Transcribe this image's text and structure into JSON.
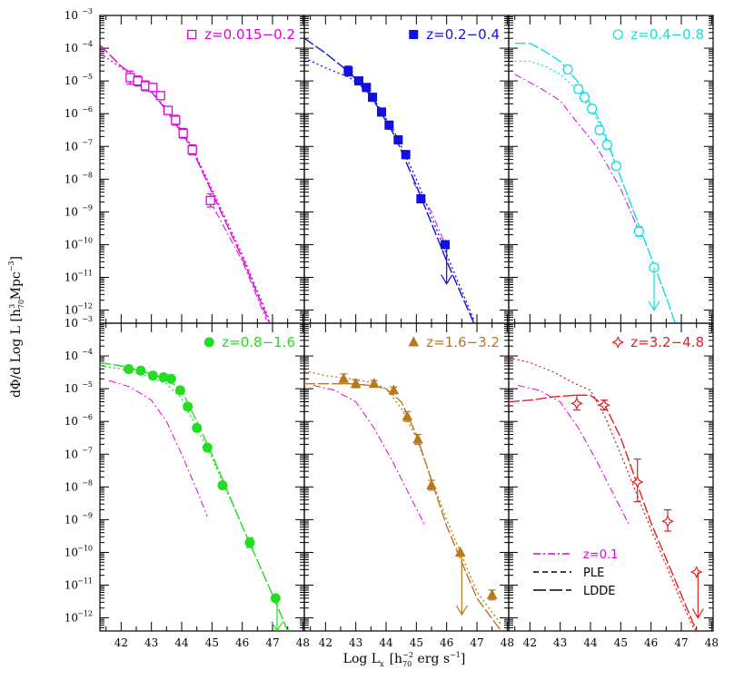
{
  "chart_data": {
    "type": "scatter",
    "xlabel": "Log L",
    "xlabel_sub": "x",
    "xlabel_bracket": "[h",
    "xlabel_unit_sub": "70",
    "xlabel_unit_sup": "−2",
    "xlabel_unit_rest": " erg s",
    "xlabel_unit_sup2": "−1",
    "xlabel_close": "]",
    "ylabel": "dΦ/d Log L [h",
    "ylabel_sub": "70",
    "ylabel_sup": "3",
    "ylabel_rest": " Mpc",
    "ylabel_sup2": "−3",
    "ylabel_close": "]",
    "xlim": [
      41.3,
      48.05
    ],
    "ylim_log10": [
      -12.4,
      -3
    ],
    "x_ticks": [
      42,
      43,
      44,
      45,
      46,
      47,
      48
    ],
    "y_tick_exponents": [
      -12,
      -11,
      -10,
      -9,
      -8,
      -7,
      -6,
      -5,
      -4,
      -3
    ],
    "y_tick_base": "10",
    "legend": {
      "position": "bottom-right of last panel",
      "entries": [
        {
          "label": "z=0.1",
          "style": "dash-dot",
          "color": "#e000e0"
        },
        {
          "label": "PLE",
          "style": "short-dash",
          "color": "#000000"
        },
        {
          "label": "LDDE",
          "style": "long-dash",
          "color": "#000000"
        }
      ]
    },
    "panels": [
      {
        "label": "z=0.015−0.2",
        "color": "#e000e0",
        "marker": "open-square",
        "points": [
          [
            42.3,
            -4.9,
            0.2,
            0.2
          ],
          [
            42.55,
            -5.0,
            0.15,
            0.15
          ],
          [
            42.8,
            -5.15,
            0.15,
            0.15
          ],
          [
            43.05,
            -5.2,
            0.12,
            0.12
          ],
          [
            43.3,
            -5.45,
            0.12,
            0.12
          ],
          [
            43.55,
            -5.9,
            0.12,
            0.12
          ],
          [
            43.8,
            -6.2,
            0.15,
            0.15
          ],
          [
            44.05,
            -6.6,
            0.15,
            0.15
          ],
          [
            44.35,
            -7.1,
            0.15,
            0.15
          ],
          [
            44.95,
            -8.65,
            0.2,
            0.2
          ]
        ],
        "upper_limits": [],
        "ldde": [
          [
            41.3,
            -3.9
          ],
          [
            42.0,
            -4.55
          ],
          [
            42.8,
            -5.1
          ],
          [
            43.5,
            -5.9
          ],
          [
            44.3,
            -7.0
          ],
          [
            45.0,
            -8.4
          ],
          [
            46.0,
            -10.4
          ],
          [
            46.9,
            -12.4
          ]
        ],
        "ple": [
          [
            41.3,
            -4.15
          ],
          [
            42.0,
            -4.6
          ],
          [
            42.8,
            -5.15
          ],
          [
            43.5,
            -5.85
          ],
          [
            44.3,
            -6.95
          ],
          [
            45.0,
            -8.3
          ],
          [
            46.0,
            -10.3
          ],
          [
            46.9,
            -12.3
          ]
        ],
        "z01": [
          [
            44.9,
            -8.6
          ],
          [
            46.0,
            -10.5
          ],
          [
            46.8,
            -12.3
          ]
        ]
      },
      {
        "label": "z=0.2−0.4",
        "color": "#1010e0",
        "marker": "filled-square",
        "points": [
          [
            42.75,
            -4.7,
            0.15,
            0.15
          ],
          [
            43.1,
            -5.0,
            0.12,
            0.12
          ],
          [
            43.35,
            -5.2,
            0.12,
            0.12
          ],
          [
            43.55,
            -5.5,
            0.12,
            0.12
          ],
          [
            43.85,
            -5.95,
            0.12,
            0.12
          ],
          [
            44.1,
            -6.35,
            0.12,
            0.12
          ],
          [
            44.4,
            -6.8,
            0.12,
            0.12
          ],
          [
            44.65,
            -7.25,
            0.12,
            0.12
          ],
          [
            45.15,
            -8.6,
            0.12,
            0.12
          ],
          [
            45.95,
            -10.0,
            0,
            0
          ]
        ],
        "upper_limits": [
          [
            46.0,
            -10.0,
            -11.2
          ]
        ],
        "ldde": [
          [
            41.3,
            -3.7
          ],
          [
            42.0,
            -4.15
          ],
          [
            42.8,
            -4.75
          ],
          [
            43.5,
            -5.45
          ],
          [
            44.3,
            -6.7
          ],
          [
            45.0,
            -8.2
          ],
          [
            46.0,
            -10.5
          ],
          [
            46.9,
            -12.4
          ]
        ],
        "ple": [
          [
            41.3,
            -4.3
          ],
          [
            42.0,
            -4.6
          ],
          [
            42.8,
            -4.9
          ],
          [
            43.5,
            -5.4
          ],
          [
            44.3,
            -6.6
          ],
          [
            45.0,
            -8.0
          ],
          [
            46.0,
            -10.3
          ],
          [
            46.9,
            -12.3
          ]
        ],
        "z01": [
          [
            44.9,
            -8.1
          ],
          [
            45.5,
            -9.0
          ],
          [
            46.0,
            -10.1
          ]
        ]
      },
      {
        "label": "z=0.4−0.8",
        "color": "#10e0e0",
        "marker": "open-circle",
        "points": [
          [
            43.25,
            -4.65,
            0.12,
            0.12
          ],
          [
            43.6,
            -5.25,
            0.12,
            0.12
          ],
          [
            43.8,
            -5.5,
            0.12,
            0.12
          ],
          [
            44.05,
            -5.85,
            0.12,
            0.12
          ],
          [
            44.3,
            -6.5,
            0.12,
            0.12
          ],
          [
            44.55,
            -6.95,
            0.12,
            0.12
          ],
          [
            44.85,
            -7.6,
            0.12,
            0.12
          ],
          [
            45.6,
            -9.6,
            0.15,
            0.15
          ],
          [
            46.1,
            -10.7,
            0,
            0
          ]
        ],
        "upper_limits": [
          [
            46.1,
            -10.7,
            -12.0
          ]
        ],
        "ldde": [
          [
            41.5,
            -3.85
          ],
          [
            42.0,
            -3.85
          ],
          [
            42.5,
            -4.1
          ],
          [
            43.0,
            -4.4
          ],
          [
            43.6,
            -5.05
          ],
          [
            44.3,
            -6.2
          ],
          [
            45.0,
            -7.95
          ],
          [
            45.8,
            -9.9
          ],
          [
            46.5,
            -11.6
          ],
          [
            46.8,
            -12.4
          ]
        ],
        "ple": [
          [
            41.5,
            -4.4
          ],
          [
            42.0,
            -4.4
          ],
          [
            42.5,
            -4.55
          ],
          [
            43.0,
            -4.8
          ],
          [
            43.6,
            -5.3
          ],
          [
            44.3,
            -6.3
          ],
          [
            45.0,
            -7.95
          ],
          [
            45.8,
            -9.9
          ],
          [
            46.5,
            -11.6
          ],
          [
            46.8,
            -12.4
          ]
        ],
        "z01": [
          [
            41.5,
            -4.8
          ],
          [
            42.3,
            -5.2
          ],
          [
            43.0,
            -5.6
          ],
          [
            43.5,
            -6.2
          ],
          [
            44.2,
            -7.0
          ],
          [
            45.0,
            -8.3
          ],
          [
            45.7,
            -9.8
          ]
        ]
      },
      {
        "label": "z=0.8−1.6",
        "color": "#22dd22",
        "marker": "filled-circle",
        "points": [
          [
            42.25,
            -4.4,
            0.1,
            0.1
          ],
          [
            42.65,
            -4.45,
            0.1,
            0.1
          ],
          [
            43.05,
            -4.6,
            0.1,
            0.1
          ],
          [
            43.4,
            -4.65,
            0.1,
            0.1
          ],
          [
            43.65,
            -4.7,
            0.1,
            0.1
          ],
          [
            43.95,
            -5.05,
            0.1,
            0.1
          ],
          [
            44.2,
            -5.55,
            0.1,
            0.1
          ],
          [
            44.5,
            -6.2,
            0.1,
            0.1
          ],
          [
            44.85,
            -6.8,
            0.1,
            0.1
          ],
          [
            45.35,
            -7.95,
            0.1,
            0.1
          ],
          [
            46.25,
            -9.7,
            0.15,
            0.15
          ],
          [
            47.1,
            -11.4,
            0,
            0
          ]
        ],
        "upper_limits": [
          [
            47.15,
            -11.5,
            -12.4
          ]
        ],
        "ldde": [
          [
            41.3,
            -4.2
          ],
          [
            42.0,
            -4.3
          ],
          [
            42.8,
            -4.5
          ],
          [
            43.5,
            -4.7
          ],
          [
            44.0,
            -5.05
          ],
          [
            44.5,
            -6.0
          ],
          [
            45.0,
            -7.0
          ],
          [
            46.0,
            -9.2
          ],
          [
            47.0,
            -11.3
          ],
          [
            47.5,
            -12.4
          ]
        ],
        "ple": [
          [
            41.3,
            -4.3
          ],
          [
            42.0,
            -4.4
          ],
          [
            42.8,
            -4.6
          ],
          [
            43.5,
            -4.85
          ],
          [
            44.0,
            -5.3
          ],
          [
            44.5,
            -6.2
          ],
          [
            45.0,
            -7.1
          ],
          [
            46.0,
            -9.2
          ],
          [
            47.0,
            -11.3
          ],
          [
            47.5,
            -12.4
          ]
        ],
        "z01": [
          [
            41.6,
            -4.75
          ],
          [
            42.3,
            -4.95
          ],
          [
            43.0,
            -5.35
          ],
          [
            43.5,
            -6.0
          ],
          [
            44.0,
            -7.0
          ],
          [
            44.5,
            -8.1
          ],
          [
            44.85,
            -8.9
          ]
        ]
      },
      {
        "label": "z=1.6−3.2",
        "color": "#b87820",
        "marker": "filled-triangle",
        "points": [
          [
            42.6,
            -4.7,
            0.15,
            0.15
          ],
          [
            43.0,
            -4.85,
            0.12,
            0.12
          ],
          [
            43.6,
            -4.85,
            0.1,
            0.1
          ],
          [
            44.25,
            -5.05,
            0.1,
            0.1
          ],
          [
            44.7,
            -5.85,
            0.15,
            0.15
          ],
          [
            45.05,
            -6.55,
            0.15,
            0.15
          ],
          [
            45.5,
            -7.95,
            0.15,
            0.15
          ],
          [
            46.45,
            -10.0,
            0,
            0
          ],
          [
            47.5,
            -11.3,
            0.15,
            0.15
          ]
        ],
        "upper_limits": [
          [
            46.5,
            -10.0,
            -11.9
          ]
        ],
        "ldde": [
          [
            41.3,
            -4.85
          ],
          [
            42.0,
            -4.85
          ],
          [
            42.8,
            -4.85
          ],
          [
            43.5,
            -4.9
          ],
          [
            44.0,
            -5.0
          ],
          [
            44.5,
            -5.4
          ],
          [
            45.0,
            -6.4
          ],
          [
            46.0,
            -9.2
          ],
          [
            47.0,
            -11.4
          ],
          [
            47.8,
            -12.4
          ]
        ],
        "ple": [
          [
            41.3,
            -4.45
          ],
          [
            42.0,
            -4.6
          ],
          [
            42.8,
            -4.7
          ],
          [
            43.5,
            -4.8
          ],
          [
            44.0,
            -5.0
          ],
          [
            44.5,
            -5.6
          ],
          [
            45.0,
            -6.5
          ],
          [
            46.0,
            -9.0
          ],
          [
            47.0,
            -11.2
          ],
          [
            47.8,
            -12.2
          ]
        ],
        "z01": [
          [
            41.6,
            -4.9
          ],
          [
            42.3,
            -5.05
          ],
          [
            43.0,
            -5.4
          ],
          [
            43.6,
            -6.2
          ],
          [
            44.2,
            -7.2
          ],
          [
            44.8,
            -8.3
          ],
          [
            45.3,
            -9.2
          ]
        ]
      },
      {
        "label": "z=3.2−4.8",
        "color": "#e02020",
        "marker": "open-star",
        "points": [
          [
            43.55,
            -5.45,
            0.2,
            0.25
          ],
          [
            44.45,
            -5.5,
            0.15,
            0.15
          ],
          [
            45.55,
            -7.85,
            0.6,
            0.7
          ],
          [
            46.55,
            -9.05,
            0.3,
            0.35
          ],
          [
            47.5,
            -10.6,
            0,
            0
          ]
        ],
        "upper_limits": [
          [
            47.55,
            -10.6,
            -12.0
          ]
        ],
        "ldde": [
          [
            41.3,
            -5.4
          ],
          [
            42.0,
            -5.35
          ],
          [
            42.8,
            -5.25
          ],
          [
            43.5,
            -5.2
          ],
          [
            44.0,
            -5.2
          ],
          [
            44.5,
            -5.55
          ],
          [
            45.0,
            -6.5
          ],
          [
            46.0,
            -9.1
          ],
          [
            47.0,
            -11.3
          ],
          [
            47.5,
            -12.4
          ]
        ],
        "ple": [
          [
            41.3,
            -4.05
          ],
          [
            42.0,
            -4.2
          ],
          [
            42.8,
            -4.5
          ],
          [
            43.5,
            -4.85
          ],
          [
            44.0,
            -5.05
          ],
          [
            44.5,
            -5.9
          ],
          [
            45.0,
            -7.0
          ],
          [
            46.0,
            -9.3
          ],
          [
            47.0,
            -11.5
          ],
          [
            47.5,
            -12.5
          ]
        ],
        "z01": [
          [
            41.6,
            -4.9
          ],
          [
            42.3,
            -5.05
          ],
          [
            43.0,
            -5.4
          ],
          [
            43.6,
            -6.2
          ],
          [
            44.2,
            -7.2
          ],
          [
            44.8,
            -8.3
          ],
          [
            45.3,
            -9.2
          ]
        ]
      }
    ]
  }
}
